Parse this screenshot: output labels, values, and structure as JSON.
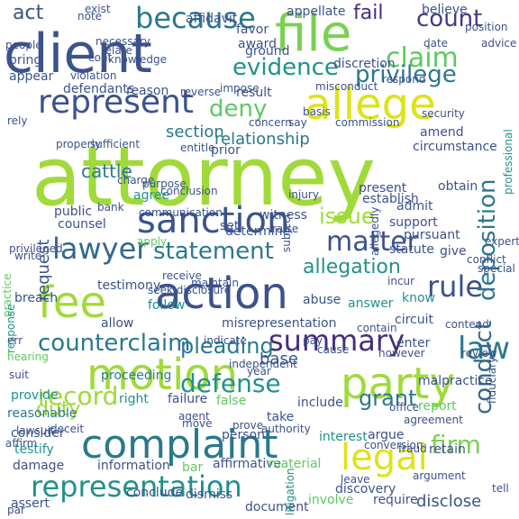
{
  "words": [
    {
      "text": "attorney",
      "color": "#a0da39"
    },
    {
      "text": "client",
      "color": "#3b528b"
    },
    {
      "text": "file",
      "color": "#7ad151"
    },
    {
      "text": "allege",
      "color": "#dde318"
    },
    {
      "text": "party",
      "color": "#a0da39"
    },
    {
      "text": "motion",
      "color": "#a0da39"
    },
    {
      "text": "complaint",
      "color": "#2a788e"
    },
    {
      "text": "action",
      "color": "#3b528b"
    },
    {
      "text": "fee",
      "color": "#a0da39"
    },
    {
      "text": "sanction",
      "color": "#3b528b"
    },
    {
      "text": "represent",
      "color": "#3b528b"
    },
    {
      "text": "because",
      "color": "#2a788e"
    },
    {
      "text": "claim",
      "color": "#5ec962"
    },
    {
      "text": "matter",
      "color": "#3b528b"
    },
    {
      "text": "rule",
      "color": "#3b528b"
    },
    {
      "text": "law",
      "color": "#2a788e"
    },
    {
      "text": "legal",
      "color": "#dde318"
    },
    {
      "text": "lawyer",
      "color": "#31688e"
    },
    {
      "text": "summary",
      "color": "#472d7b"
    },
    {
      "text": "representation",
      "color": "#21918c"
    },
    {
      "text": "defense",
      "color": "#21918c"
    },
    {
      "text": "record",
      "color": "#a0da39"
    },
    {
      "text": "pleading",
      "color": "#2a788e"
    },
    {
      "text": "count",
      "color": "#443a83"
    },
    {
      "text": "deny",
      "color": "#5ec962"
    },
    {
      "text": "evidence",
      "color": "#21918c"
    },
    {
      "text": "privilege",
      "color": "#2a788e"
    },
    {
      "text": "statement",
      "color": "#2a788e"
    },
    {
      "text": "counterclaim",
      "color": "#2a788e"
    },
    {
      "text": "issue",
      "color": "#a0da39"
    },
    {
      "text": "deposition",
      "color": "#2a788e"
    },
    {
      "text": "conduct",
      "color": "#31688e"
    },
    {
      "text": "firm",
      "color": "#7ad151"
    },
    {
      "text": "grant",
      "color": "#2a788e"
    },
    {
      "text": "duty",
      "color": "#a0da39"
    },
    {
      "text": "allegation",
      "color": "#21918c"
    },
    {
      "text": "act",
      "color": "#3b528b"
    },
    {
      "text": "fail",
      "color": "#472d7b"
    },
    {
      "text": "cattle",
      "color": "#2a788e"
    },
    {
      "text": "section",
      "color": "#2a788e"
    },
    {
      "text": "relationship",
      "color": "#2a788e"
    },
    {
      "text": "request",
      "color": "#3b528b"
    },
    {
      "text": "base",
      "color": "#3b528b"
    },
    {
      "text": "discovery",
      "color": "#3b528b"
    },
    {
      "text": "disclose",
      "color": "#3b528b"
    },
    {
      "text": "require",
      "color": "#3b528b"
    },
    {
      "text": "document",
      "color": "#3b528b"
    },
    {
      "text": "conclude",
      "color": "#3b528b"
    },
    {
      "text": "dismiss",
      "color": "#3b528b"
    },
    {
      "text": "involve",
      "color": "#5ec962"
    },
    {
      "text": "assert",
      "color": "#3b528b"
    },
    {
      "text": "information",
      "color": "#3b528b"
    },
    {
      "text": "damage",
      "color": "#3b528b"
    },
    {
      "text": "bar",
      "color": "#5ec962"
    },
    {
      "text": "affirmative",
      "color": "#3b528b"
    },
    {
      "text": "material",
      "color": "#5ec962"
    },
    {
      "text": "testify",
      "color": "#21918c"
    },
    {
      "text": "consider",
      "color": "#3b528b"
    },
    {
      "text": "reasonable",
      "color": "#2a788e"
    },
    {
      "text": "provide",
      "color": "#21918c"
    },
    {
      "text": "proceeding",
      "color": "#2a788e"
    },
    {
      "text": "right",
      "color": "#21918c"
    },
    {
      "text": "failure",
      "color": "#3b528b"
    },
    {
      "text": "false",
      "color": "#5ec962"
    },
    {
      "text": "person",
      "color": "#3b528b"
    },
    {
      "text": "take",
      "color": "#3b528b"
    },
    {
      "text": "interest",
      "color": "#21918c"
    },
    {
      "text": "include",
      "color": "#3b528b"
    },
    {
      "text": "argue",
      "color": "#3b528b"
    },
    {
      "text": "report",
      "color": "#5ec962"
    },
    {
      "text": "malpractice",
      "color": "#3b528b"
    },
    {
      "text": "retain",
      "color": "#3b528b"
    },
    {
      "text": "circuit",
      "color": "#3b528b"
    },
    {
      "text": "enter",
      "color": "#3b528b"
    },
    {
      "text": "answer",
      "color": "#21918c"
    },
    {
      "text": "know",
      "color": "#21918c"
    },
    {
      "text": "misrepresentation",
      "color": "#3b528b"
    },
    {
      "text": "allow",
      "color": "#3b528b"
    },
    {
      "text": "follow",
      "color": "#21918c"
    },
    {
      "text": "abuse",
      "color": "#3b528b"
    },
    {
      "text": "testimony",
      "color": "#3b528b"
    },
    {
      "text": "breach",
      "color": "#3b528b"
    },
    {
      "text": "seek disclosure",
      "color": "#3b528b"
    },
    {
      "text": "counsel",
      "color": "#3b528b"
    },
    {
      "text": "public",
      "color": "#3b528b"
    },
    {
      "text": "set",
      "color": "#3b528b"
    },
    {
      "text": "give",
      "color": "#3b528b"
    },
    {
      "text": "statute",
      "color": "#3b528b"
    },
    {
      "text": "pursuant",
      "color": "#3b528b"
    },
    {
      "text": "determine",
      "color": "#3b528b"
    },
    {
      "text": "communication",
      "color": "#3b528b"
    },
    {
      "text": "admit",
      "color": "#3b528b"
    },
    {
      "text": "witness",
      "color": "#3b528b"
    },
    {
      "text": "present",
      "color": "#3b528b"
    },
    {
      "text": "establish",
      "color": "#3b528b"
    },
    {
      "text": "obtain",
      "color": "#3b528b"
    },
    {
      "text": "agree",
      "color": "#21918c"
    },
    {
      "text": "purpose",
      "color": "#3b528b"
    },
    {
      "text": "prior",
      "color": "#3b528b"
    },
    {
      "text": "result",
      "color": "#3b528b"
    },
    {
      "text": "discretion",
      "color": "#3b528b"
    },
    {
      "text": "ground",
      "color": "#3b528b"
    },
    {
      "text": "award",
      "color": "#3b528b"
    },
    {
      "text": "favor",
      "color": "#3b528b"
    },
    {
      "text": "affidavit",
      "color": "#3b528b"
    },
    {
      "text": "appellate",
      "color": "#3b528b"
    },
    {
      "text": "believe",
      "color": "#3b528b"
    },
    {
      "text": "date",
      "color": "#3b528b"
    },
    {
      "text": "advice",
      "color": "#3b528b"
    },
    {
      "text": "amend",
      "color": "#3b528b"
    },
    {
      "text": "circumstance",
      "color": "#3b528b"
    },
    {
      "text": "reason",
      "color": "#3b528b"
    },
    {
      "text": "defendants",
      "color": "#3b528b"
    },
    {
      "text": "appear",
      "color": "#3b528b"
    },
    {
      "text": "bring",
      "color": "#3b528b"
    },
    {
      "text": "note",
      "color": "#3b528b"
    },
    {
      "text": "violation",
      "color": "#3b528b"
    },
    {
      "text": "knowledge",
      "color": "#3b528b"
    },
    {
      "text": "basis",
      "color": "#3b528b"
    },
    {
      "text": "entitle",
      "color": "#3b528b"
    },
    {
      "text": "bank",
      "color": "#3b528b"
    },
    {
      "text": "subject",
      "color": "#3b528b"
    },
    {
      "text": "injury",
      "color": "#3b528b"
    },
    {
      "text": "support",
      "color": "#3b528b"
    },
    {
      "text": "professional",
      "color": "#21918c"
    },
    {
      "text": "incur",
      "color": "#3b528b"
    },
    {
      "text": "practice",
      "color": "#5ec962"
    },
    {
      "text": "response",
      "color": "#21918c"
    },
    {
      "text": "fiduciary",
      "color": "#3b528b"
    },
    {
      "text": "litigation",
      "color": "#21918c"
    },
    {
      "text": "office",
      "color": "#3b528b"
    },
    {
      "text": "fraud",
      "color": "#3b528b"
    },
    {
      "text": "argument",
      "color": "#3b528b"
    },
    {
      "text": "leave",
      "color": "#3b528b"
    },
    {
      "text": "hearing",
      "color": "#5ec962"
    },
    {
      "text": "err",
      "color": "#3b528b"
    },
    {
      "text": "suit",
      "color": "#3b528b"
    },
    {
      "text": "lawsuit",
      "color": "#3b528b"
    },
    {
      "text": "affirm",
      "color": "#3b528b"
    },
    {
      "text": "move",
      "color": "#3b528b"
    },
    {
      "text": "prove",
      "color": "#3b528b"
    },
    {
      "text": "authority",
      "color": "#3b528b"
    },
    {
      "text": "conversion",
      "color": "#3b528b"
    },
    {
      "text": "agreement",
      "color": "#3b528b"
    },
    {
      "text": "contend",
      "color": "#3b528b"
    },
    {
      "text": "review",
      "color": "#3b528b"
    },
    {
      "text": "indicate",
      "color": "#3b528b"
    },
    {
      "text": "independent",
      "color": "#3b528b"
    },
    {
      "text": "year",
      "color": "#3b528b"
    },
    {
      "text": "pay",
      "color": "#3b528b"
    },
    {
      "text": "cause",
      "color": "#3b528b"
    },
    {
      "text": "conclusion",
      "color": "#3b528b"
    },
    {
      "text": "charge",
      "color": "#3b528b"
    },
    {
      "text": "apply",
      "color": "#5ec962"
    },
    {
      "text": "privileged",
      "color": "#3b528b"
    },
    {
      "text": "write",
      "color": "#3b528b"
    },
    {
      "text": "properly",
      "color": "#3b528b"
    },
    {
      "text": "sufficient",
      "color": "#3b528b"
    },
    {
      "text": "reverse",
      "color": "#3b528b"
    },
    {
      "text": "impose",
      "color": "#3b528b"
    },
    {
      "text": "misconduct",
      "color": "#3b528b"
    },
    {
      "text": "respond",
      "color": "#3b528b"
    },
    {
      "text": "security",
      "color": "#3b528b"
    },
    {
      "text": "position",
      "color": "#3b528b"
    },
    {
      "text": "people",
      "color": "#3b528b"
    },
    {
      "text": "exist",
      "color": "#3b528b"
    },
    {
      "text": "relate",
      "color": "#3b528b"
    },
    {
      "text": "rely",
      "color": "#3b528b"
    },
    {
      "text": "concern",
      "color": "#3b528b"
    },
    {
      "text": "necessary",
      "color": "#3b528b"
    },
    {
      "text": "raise",
      "color": "#3b528b"
    },
    {
      "text": "expert",
      "color": "#3b528b"
    },
    {
      "text": "tell",
      "color": "#3b528b"
    },
    {
      "text": "par",
      "color": "#3b528b"
    },
    {
      "text": "say",
      "color": "#3b528b"
    },
    {
      "text": "allegedly",
      "color": "#3b528b"
    },
    {
      "text": "commission",
      "color": "#3b528b"
    },
    {
      "text": "receive",
      "color": "#3b528b"
    },
    {
      "text": "maintain",
      "color": "#3b528b"
    },
    {
      "text": "contain",
      "color": "#3b528b"
    },
    {
      "text": "conflict",
      "color": "#3b528b"
    },
    {
      "text": "special",
      "color": "#3b528b"
    },
    {
      "text": "however",
      "color": "#3b528b"
    },
    {
      "text": "deceit",
      "color": "#3b528b"
    },
    {
      "text": "agent",
      "color": "#3b528b"
    },
    {
      "text": "cont",
      "color": "#3b528b"
    }
  ]
}
